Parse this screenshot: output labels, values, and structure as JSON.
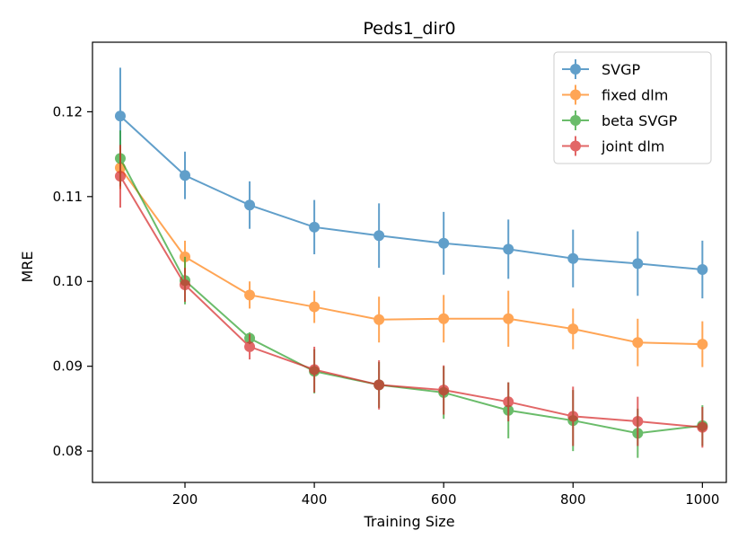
{
  "chart_data": {
    "type": "line",
    "title": "Peds1_dir0",
    "xlabel": "Training Size",
    "ylabel": "MRE",
    "x": [
      100,
      200,
      300,
      400,
      500,
      600,
      700,
      800,
      900,
      1000
    ],
    "xlim": [
      57,
      1037
    ],
    "ylim": [
      0.0763,
      0.1282
    ],
    "xticks": [
      200,
      400,
      600,
      800,
      1000
    ],
    "yticks": [
      0.08,
      0.09,
      0.1,
      0.11,
      0.12
    ],
    "xtick_labels": [
      "200",
      "400",
      "600",
      "800",
      "1000"
    ],
    "ytick_labels": [
      "0.08",
      "0.09",
      "0.10",
      "0.11",
      "0.12"
    ],
    "grid": false,
    "legend_position": "top-right",
    "series": [
      {
        "name": "SVGP",
        "color": "#1f77b4",
        "values": [
          0.1195,
          0.1125,
          0.109,
          0.1064,
          0.1054,
          0.1045,
          0.1038,
          0.1027,
          0.1021,
          0.1014
        ],
        "errors": [
          0.0057,
          0.0028,
          0.0028,
          0.0032,
          0.0038,
          0.0037,
          0.0035,
          0.0034,
          0.0038,
          0.0034
        ]
      },
      {
        "name": "fixed dlm",
        "color": "#ff7f0e",
        "values": [
          0.1134,
          0.1029,
          0.0984,
          0.097,
          0.0955,
          0.0956,
          0.0956,
          0.0944,
          0.0928,
          0.0926
        ],
        "errors": [
          0.0025,
          0.0019,
          0.0016,
          0.0019,
          0.0027,
          0.0028,
          0.0033,
          0.0024,
          0.0028,
          0.0027
        ]
      },
      {
        "name": "beta SVGP",
        "color": "#2ca02c",
        "values": [
          0.1145,
          0.1001,
          0.0933,
          0.0894,
          0.0878,
          0.0869,
          0.0848,
          0.0836,
          0.0821,
          0.083
        ],
        "errors": [
          0.0033,
          0.0028,
          0.0007,
          0.0026,
          0.0027,
          0.0031,
          0.0033,
          0.0036,
          0.0029,
          0.0024
        ]
      },
      {
        "name": "joint dlm",
        "color": "#d62728",
        "values": [
          0.1124,
          0.0996,
          0.0923,
          0.0896,
          0.0878,
          0.0872,
          0.0858,
          0.0841,
          0.0835,
          0.0828
        ],
        "errors": [
          0.0037,
          0.002,
          0.0015,
          0.0027,
          0.0029,
          0.0029,
          0.0023,
          0.0035,
          0.0029,
          0.0024
        ]
      }
    ]
  }
}
